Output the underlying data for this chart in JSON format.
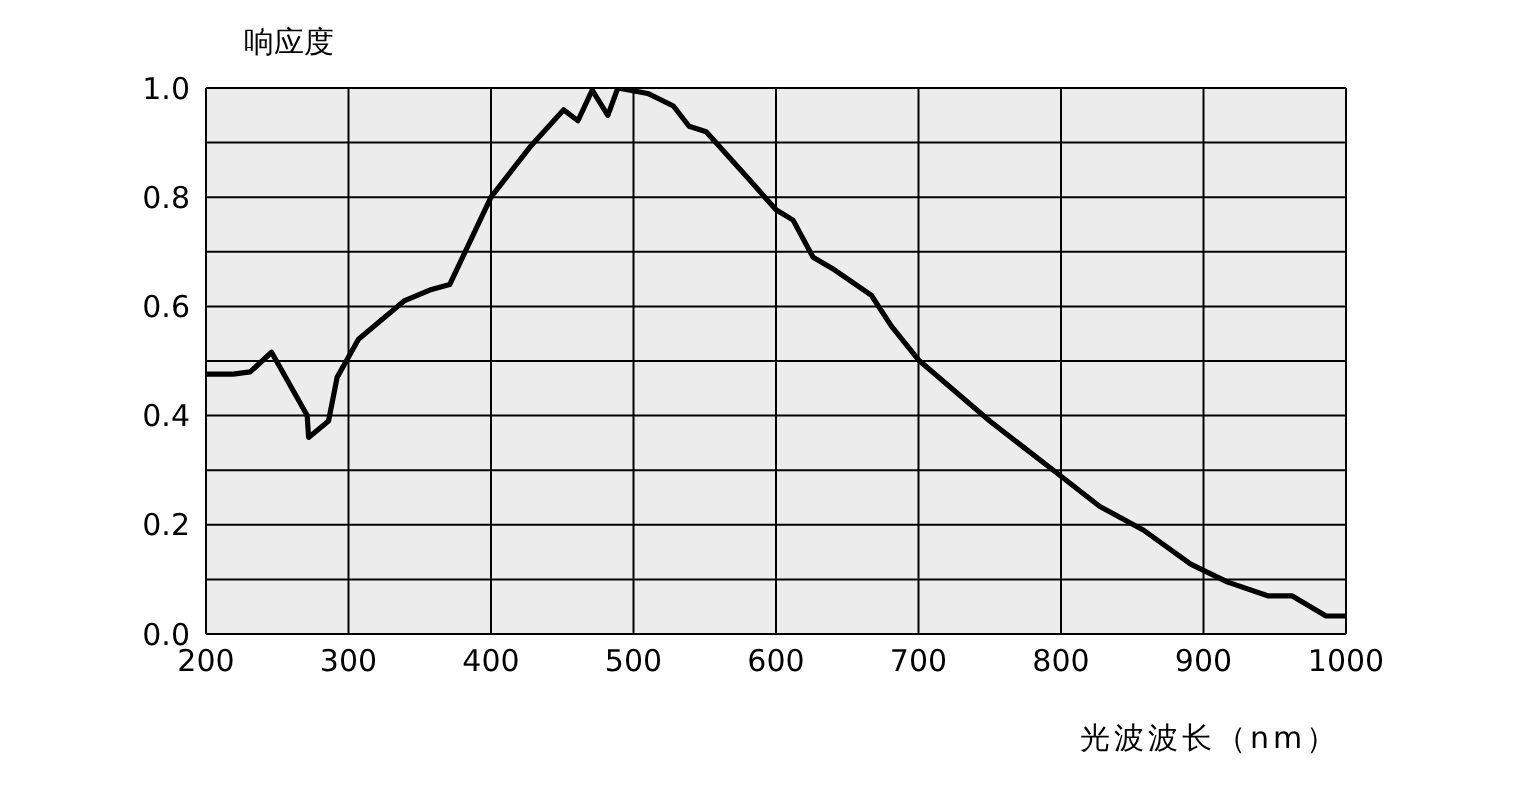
{
  "chart_data": {
    "type": "line",
    "ylabel": "响应度",
    "xlabel": "光波波长（nm）",
    "x": [
      201,
      219,
      231,
      246,
      271,
      272,
      286,
      292,
      307,
      339,
      357,
      371,
      400,
      428,
      451,
      461,
      471,
      482,
      489,
      510,
      528,
      539,
      551,
      582,
      600,
      612,
      626,
      641,
      667,
      681,
      700,
      750,
      798,
      827,
      858,
      891,
      917,
      945,
      962,
      986,
      1000
    ],
    "series": [
      {
        "color": "#000000",
        "values": [
          0.476,
          0.476,
          0.48,
          0.516,
          0.4,
          0.36,
          0.39,
          0.47,
          0.54,
          0.61,
          0.63,
          0.64,
          0.8,
          0.894,
          0.96,
          0.94,
          0.996,
          0.95,
          1.0,
          0.99,
          0.967,
          0.93,
          0.92,
          0.83,
          0.777,
          0.758,
          0.69,
          0.667,
          0.62,
          0.564,
          0.502,
          0.39,
          0.293,
          0.234,
          0.19,
          0.128,
          0.095,
          0.07,
          0.07,
          0.033,
          0.033
        ]
      }
    ],
    "xlim": [
      200,
      1000
    ],
    "xticks": [
      200,
      300,
      400,
      500,
      600,
      700,
      800,
      900,
      1000
    ],
    "ylim": [
      0,
      1
    ],
    "yticks": [
      {
        "value": 0,
        "label": "0.0"
      },
      {
        "value": 0.1,
        "label": null
      },
      0.2,
      {
        "value": 0.3,
        "label": null
      },
      0.4,
      {
        "value": 0.5,
        "label": null
      },
      0.6,
      {
        "value": 0.7,
        "label": null
      },
      0.8,
      {
        "value": 0.9,
        "label": null
      },
      {
        "value": 1,
        "label": "1.0"
      }
    ],
    "grid": true,
    "marker": "none",
    "line_style": "solid"
  }
}
